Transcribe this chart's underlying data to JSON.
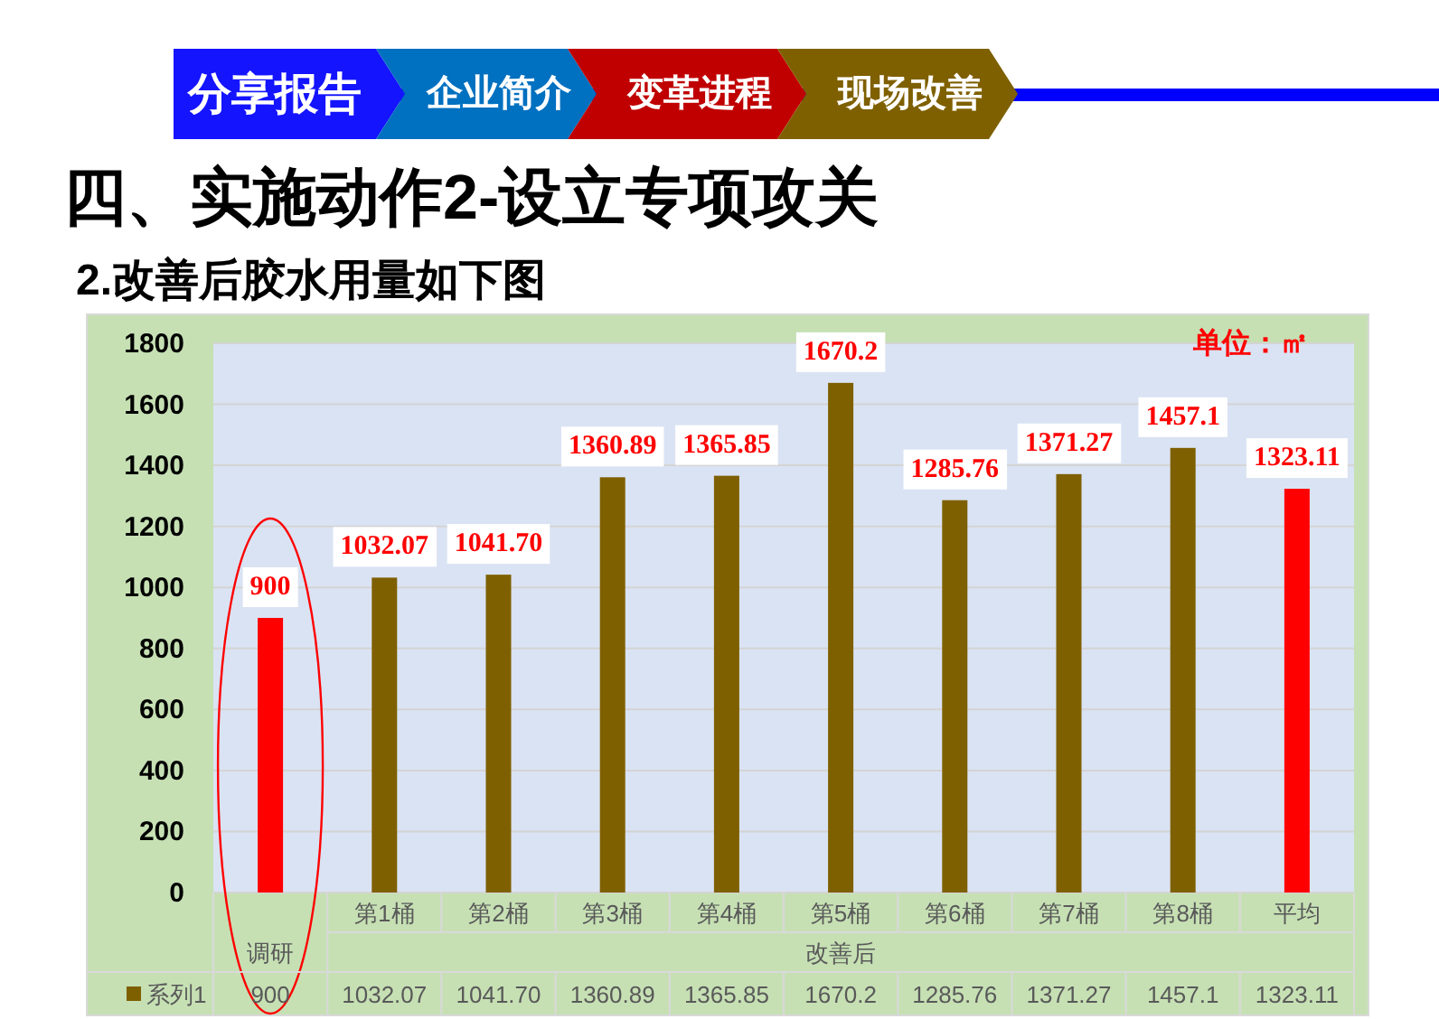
{
  "chart_data": {
    "type": "bar",
    "title": "四、实施动作2-设立专项攻关",
    "subtitle": "2.改善后胶水用量如下图",
    "categories": [
      "调研",
      "第1桶",
      "第2桶",
      "第3桶",
      "第4桶",
      "第5桶",
      "第6桶",
      "第7桶",
      "第8桶",
      "平均"
    ],
    "series": [
      {
        "name": "系列1",
        "color": "#7f6000",
        "colors": [
          "#ff0000",
          "#7f6000",
          "#7f6000",
          "#7f6000",
          "#7f6000",
          "#7f6000",
          "#7f6000",
          "#7f6000",
          "#7f6000",
          "#ff0000"
        ],
        "values": [
          900,
          1032.07,
          1041.7,
          1360.89,
          1365.85,
          1670.2,
          1285.76,
          1371.27,
          1457.1,
          1323.11
        ],
        "value_labels": [
          "900",
          "1032.07",
          "1041.70",
          "1360.89",
          "1365.85",
          "1670.2",
          "1285.76",
          "1371.27",
          "1457.1",
          "1323.11"
        ]
      }
    ],
    "ylim": [
      0,
      1800
    ],
    "yticks": [
      0,
      200,
      400,
      600,
      800,
      1000,
      1200,
      1400,
      1600,
      1800
    ],
    "grid": "y",
    "legend": "bottom",
    "annotations": [
      "分享报告",
      "企业简介",
      "变革进程",
      "现场改善",
      "单位：㎡",
      "改善后"
    ]
  }
}
